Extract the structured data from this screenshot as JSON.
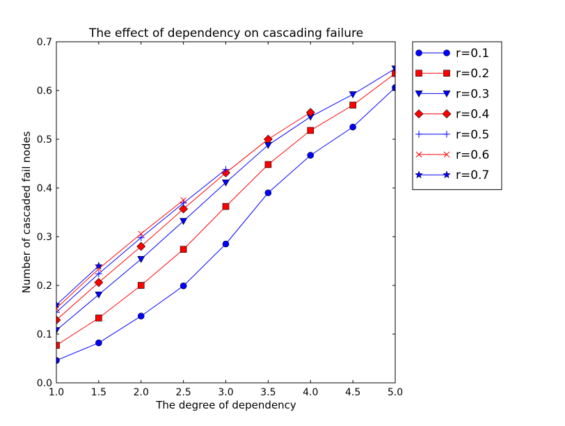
{
  "chart_data": {
    "type": "line",
    "title": "The effect of dependency on cascading failure",
    "xlabel": "The degree of dependency",
    "ylabel": "Number of cascaded fail nodes",
    "xlim": [
      1.0,
      5.0
    ],
    "ylim": [
      0.0,
      0.7
    ],
    "xticks": [
      "1.0",
      "1.5",
      "2.0",
      "2.5",
      "3.0",
      "3.5",
      "4.0",
      "4.5",
      "5.0"
    ],
    "yticks": [
      "0.0",
      "0.1",
      "0.2",
      "0.3",
      "0.4",
      "0.5",
      "0.6",
      "0.7"
    ],
    "grid": false,
    "legend_position": "outside-top-right",
    "series": [
      {
        "name": "r=0.1",
        "color": "#0000ff",
        "marker": "circle",
        "x": [
          1.0,
          1.5,
          2.0,
          2.5,
          3.0,
          3.5,
          4.0,
          4.5,
          5.0
        ],
        "y": [
          0.046,
          0.082,
          0.137,
          0.199,
          0.285,
          0.39,
          0.467,
          0.525,
          0.606
        ]
      },
      {
        "name": "r=0.2",
        "color": "#ff0000",
        "marker": "square",
        "x": [
          1.0,
          1.5,
          2.0,
          2.5,
          3.0,
          3.5,
          4.0,
          4.5,
          5.0
        ],
        "y": [
          0.077,
          0.133,
          0.2,
          0.274,
          0.362,
          0.448,
          0.518,
          0.57,
          0.635
        ]
      },
      {
        "name": "r=0.3",
        "color": "#0000ff",
        "marker": "triangle-down",
        "x": [
          1.0,
          1.5,
          2.0,
          2.5,
          3.0,
          3.5,
          4.0,
          4.5,
          5.0
        ],
        "y": [
          0.108,
          0.181,
          0.254,
          0.332,
          0.411,
          0.488,
          0.546,
          0.592,
          0.645
        ]
      },
      {
        "name": "r=0.4",
        "color": "#ff0000",
        "marker": "diamond",
        "x": [
          1.0,
          1.5,
          2.0,
          2.5,
          3.0,
          3.5,
          4.0
        ],
        "y": [
          0.129,
          0.206,
          0.28,
          0.357,
          0.431,
          0.5,
          0.555
        ]
      },
      {
        "name": "r=0.5",
        "color": "#0000ff",
        "marker": "plus",
        "x": [
          1.0,
          1.5,
          2.0,
          2.5,
          3.0
        ],
        "y": [
          0.145,
          0.224,
          0.298,
          0.369,
          0.438
        ]
      },
      {
        "name": "r=0.6",
        "color": "#ff0000",
        "marker": "x",
        "x": [
          1.0,
          1.5,
          2.0,
          2.5
        ],
        "y": [
          0.153,
          0.234,
          0.306,
          0.375
        ]
      },
      {
        "name": "r=0.7",
        "color": "#0000ff",
        "marker": "star",
        "x": [
          1.0,
          1.5
        ],
        "y": [
          0.16,
          0.24
        ]
      }
    ]
  }
}
